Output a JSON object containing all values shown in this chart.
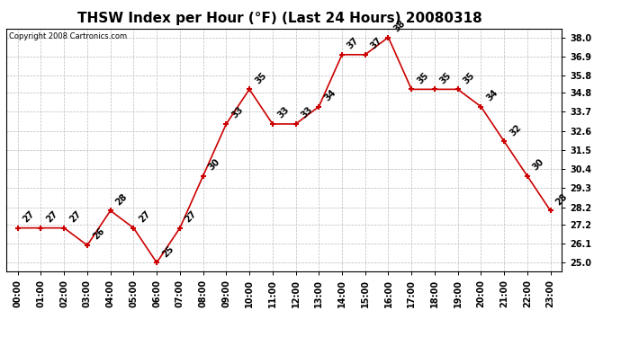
{
  "title": "THSW Index per Hour (°F) (Last 24 Hours) 20080318",
  "copyright": "Copyright 2008 Cartronics.com",
  "hours": [
    0,
    1,
    2,
    3,
    4,
    5,
    6,
    7,
    8,
    9,
    10,
    11,
    12,
    13,
    14,
    15,
    16,
    17,
    18,
    19,
    20,
    21,
    22,
    23
  ],
  "values": [
    27,
    27,
    27,
    26,
    28,
    27,
    25,
    27,
    30,
    33,
    35,
    33,
    33,
    34,
    37,
    37,
    38,
    35,
    35,
    35,
    34,
    32,
    30,
    28
  ],
  "x_labels": [
    "00:00",
    "01:00",
    "02:00",
    "03:00",
    "04:00",
    "05:00",
    "06:00",
    "07:00",
    "08:00",
    "09:00",
    "10:00",
    "11:00",
    "12:00",
    "13:00",
    "14:00",
    "15:00",
    "16:00",
    "17:00",
    "18:00",
    "19:00",
    "20:00",
    "21:00",
    "22:00",
    "23:00"
  ],
  "ylim": [
    24.5,
    38.5
  ],
  "yticks": [
    25.0,
    26.1,
    27.2,
    28.2,
    29.3,
    30.4,
    31.5,
    32.6,
    33.7,
    34.8,
    35.8,
    36.9,
    38.0
  ],
  "ytick_labels": [
    "25.0",
    "26.1",
    "27.2",
    "28.2",
    "29.3",
    "30.4",
    "31.5",
    "32.6",
    "33.7",
    "34.8",
    "35.8",
    "36.9",
    "38.0"
  ],
  "line_color": "#cc0000",
  "marker_color": "#cc0000",
  "bg_color": "#ffffff",
  "grid_color": "#bbbbbb",
  "title_fontsize": 11,
  "tick_fontsize": 7,
  "annot_fontsize": 7,
  "copyright_fontsize": 6
}
